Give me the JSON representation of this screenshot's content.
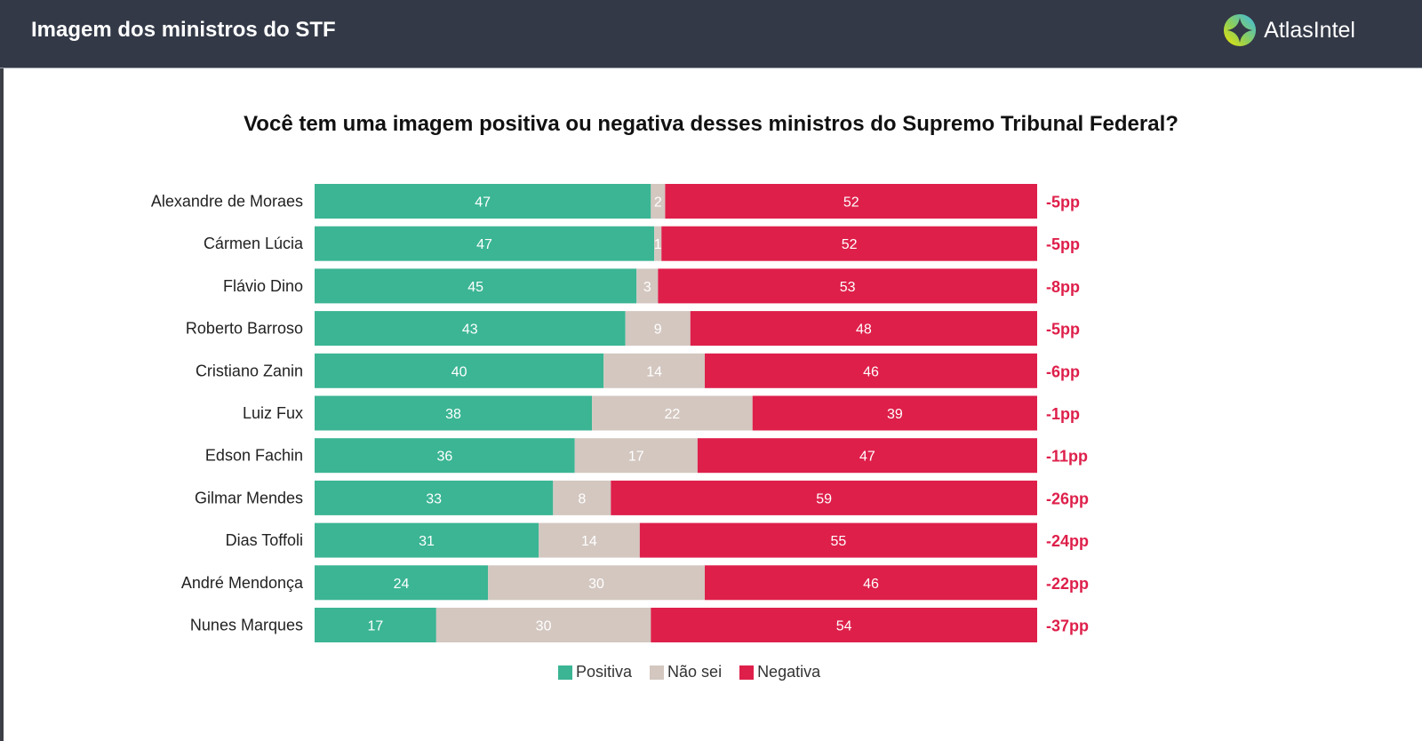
{
  "header": {
    "title": "Imagem dos ministros do STF",
    "brand": "AtlasIntel"
  },
  "colors": {
    "positiva": "#3bb594",
    "nao_sei": "#d3c7c0",
    "negativa": "#de1f4a",
    "net": "#de1f4a"
  },
  "chart_data": {
    "type": "bar",
    "orientation": "horizontal",
    "stacked": true,
    "normalized": true,
    "title": "Você tem uma imagem positiva ou negativa desses ministros do Supremo Tribunal Federal?",
    "categories": [
      "Alexandre de Moraes",
      "Cármen Lúcia",
      "Flávio Dino",
      "Roberto Barroso",
      "Cristiano Zanin",
      "Luiz Fux",
      "Edson Fachin",
      "Gilmar Mendes",
      "Dias Toffoli",
      "André Mendonça",
      "Nunes Marques"
    ],
    "series": [
      {
        "name": "Positiva",
        "key": "positiva",
        "values": [
          47,
          47,
          45,
          43,
          40,
          38,
          36,
          33,
          31,
          24,
          17
        ]
      },
      {
        "name": "Não sei",
        "key": "nao_sei",
        "values": [
          2,
          1,
          3,
          9,
          14,
          22,
          17,
          8,
          14,
          30,
          30
        ]
      },
      {
        "name": "Negativa",
        "key": "negativa",
        "values": [
          52,
          52,
          53,
          48,
          46,
          39,
          47,
          59,
          55,
          46,
          54
        ]
      }
    ],
    "net_labels": [
      "-5pp",
      "-5pp",
      "-8pp",
      "-5pp",
      "-6pp",
      "-1pp",
      "-11pp",
      "-26pp",
      "-24pp",
      "-22pp",
      "-37pp"
    ],
    "legend": [
      "Positiva",
      "Não sei",
      "Negativa"
    ],
    "legend_position": "bottom",
    "xlabel": "",
    "ylabel": "",
    "grid": false
  }
}
